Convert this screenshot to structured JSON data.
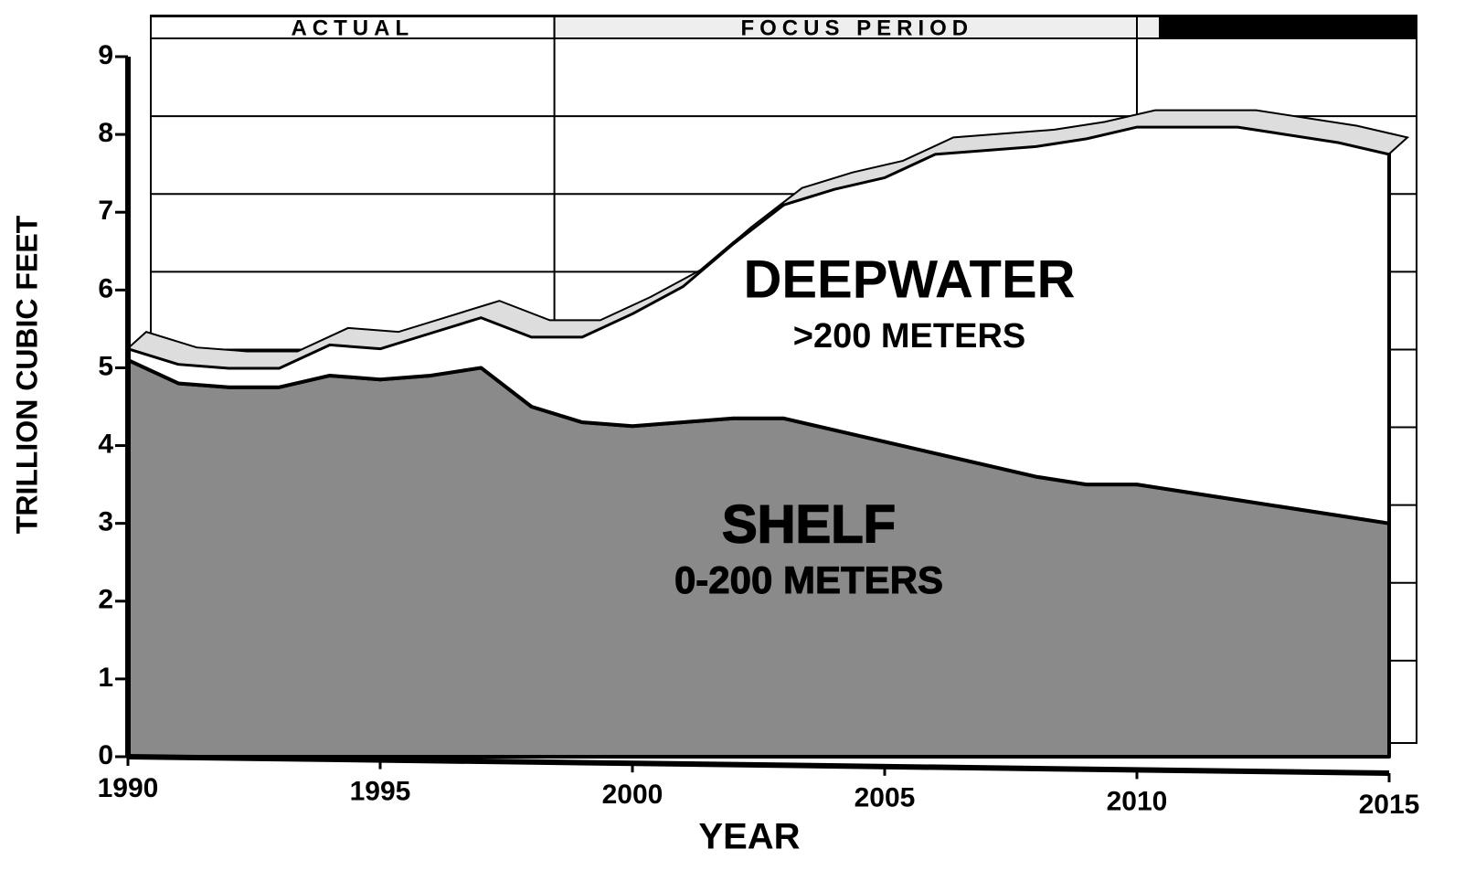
{
  "chart_data": {
    "type": "area",
    "stacked": true,
    "x_label": "YEAR",
    "y_label": "TRILLION CUBIC FEET",
    "x": [
      1990,
      1991,
      1992,
      1993,
      1994,
      1995,
      1996,
      1997,
      1998,
      1999,
      2000,
      2001,
      2002,
      2003,
      2004,
      2005,
      2006,
      2007,
      2008,
      2009,
      2010,
      2011,
      2012,
      2013,
      2014,
      2015
    ],
    "series": [
      {
        "name": "SHELF",
        "color": "#8a8a8a",
        "values": [
          5.1,
          4.8,
          4.75,
          4.75,
          4.9,
          4.85,
          4.9,
          5.0,
          4.5,
          4.3,
          4.25,
          4.3,
          4.35,
          4.35,
          4.2,
          4.05,
          3.9,
          3.75,
          3.6,
          3.5,
          3.5,
          3.4,
          3.3,
          3.2,
          3.1,
          3.0
        ]
      },
      {
        "name": "DEEPWATER",
        "color": "#ffffff",
        "values": [
          0.15,
          0.25,
          0.25,
          0.25,
          0.4,
          0.4,
          0.55,
          0.65,
          0.9,
          1.1,
          1.45,
          1.75,
          2.25,
          2.75,
          3.1,
          3.4,
          3.85,
          4.05,
          4.25,
          4.45,
          4.6,
          4.7,
          4.8,
          4.8,
          4.8,
          4.75
        ]
      }
    ],
    "series_notes": [
      "0-200 METERS",
      ">200 METERS"
    ],
    "periods": [
      {
        "label": "ACTUAL",
        "start": 1990,
        "end": 1998
      },
      {
        "label": "FOCUS PERIOD",
        "start": 1998,
        "end": 2010
      }
    ],
    "xlim": [
      1990,
      2015
    ],
    "xticks": [
      1990,
      1995,
      2000,
      2005,
      2010,
      2015
    ],
    "ylim": [
      0,
      9
    ],
    "yticks": [
      0,
      1,
      2,
      3,
      4,
      5,
      6,
      7,
      8,
      9
    ],
    "grid": true
  }
}
